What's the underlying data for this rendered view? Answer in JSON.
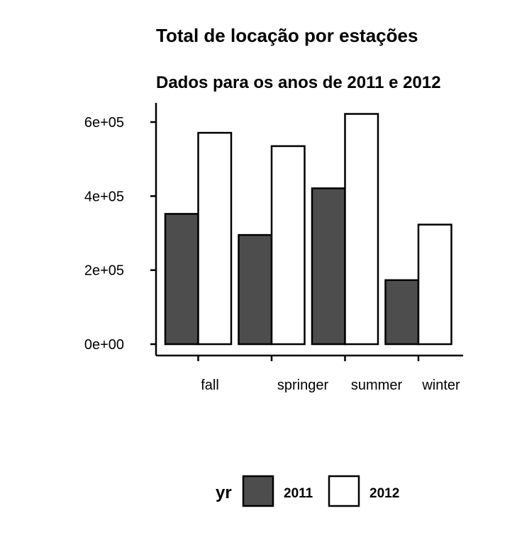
{
  "chart_data": {
    "type": "bar",
    "title": "Total de locação por estações",
    "subtitle": "Dados para os anos de 2011 e 2012",
    "xlabel": "",
    "ylabel": "",
    "categories": [
      "fall",
      "springer",
      "summer",
      "winter"
    ],
    "series": [
      {
        "name": "2011",
        "values": [
          352000,
          295000,
          421000,
          173000
        ],
        "color": "#4d4d4d"
      },
      {
        "name": "2012",
        "values": [
          571000,
          535000,
          622000,
          323000
        ],
        "color": "#ffffff"
      }
    ],
    "ylim": [
      0,
      650000
    ],
    "yticks": [
      0,
      200000,
      400000,
      600000
    ],
    "ytick_labels": [
      "0e+00",
      "2e+05",
      "4e+05",
      "6e+05"
    ],
    "grid": false,
    "legend": {
      "title": "yr",
      "placement": "bottom"
    },
    "colors": {
      "stroke": "#000000",
      "dark": "#4d4d4d",
      "light": "#ffffff"
    }
  }
}
